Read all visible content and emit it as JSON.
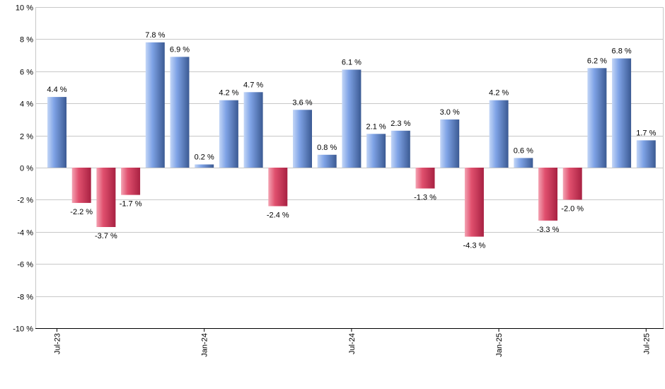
{
  "chart_data": {
    "type": "bar",
    "values": [
      4.4,
      -2.2,
      -3.7,
      -1.7,
      7.8,
      6.9,
      0.2,
      4.2,
      4.7,
      -2.4,
      3.6,
      0.8,
      6.1,
      2.1,
      2.3,
      -1.3,
      3.0,
      -4.3,
      4.2,
      0.6,
      -3.3,
      -2.0,
      6.2,
      6.8,
      1.7
    ],
    "value_labels": [
      "4.4 %",
      "-2.2 %",
      "-3.7 %",
      "-1.7 %",
      "7.8 %",
      "6.9 %",
      "0.2 %",
      "4.2 %",
      "4.7 %",
      "-2.4 %",
      "3.6 %",
      "0.8 %",
      "6.1 %",
      "2.1 %",
      "2.3 %",
      "-1.3 %",
      "3.0 %",
      "-4.3 %",
      "4.2 %",
      "0.6 %",
      "-3.3 %",
      "-2.0 %",
      "6.2 %",
      "6.8 %",
      "1.7 %"
    ],
    "x_tick_labels": [
      {
        "label": "Jul-23",
        "index": 0
      },
      {
        "label": "Jan-24",
        "index": 6
      },
      {
        "label": "Jul-24",
        "index": 12
      },
      {
        "label": "Jan-25",
        "index": 18
      },
      {
        "label": "Jul-25",
        "index": 24
      }
    ],
    "y_ticks": [
      10,
      8,
      6,
      4,
      2,
      0,
      -2,
      -4,
      -6,
      -8,
      -10
    ],
    "y_tick_labels": [
      "10 %",
      "8 %",
      "6 %",
      "4 %",
      "2 %",
      "0 %",
      "-2 %",
      "-4 %",
      "-6 %",
      "-8 %",
      "-10 %"
    ],
    "ylim": [
      -10,
      10
    ],
    "grid": true,
    "colors": {
      "positive_light": "#b4cdf5",
      "positive_dark": "#3f5f9c",
      "negative_light": "#f08a9f",
      "negative_dark": "#b8284a",
      "grid": "#c8c8c8"
    }
  }
}
